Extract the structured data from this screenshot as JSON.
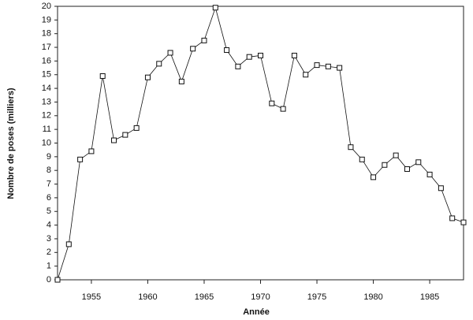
{
  "chart_data": {
    "type": "line",
    "x_label": "Année",
    "y_label": "Nombre de poses (milliers)",
    "x": [
      1952,
      1953,
      1954,
      1955,
      1956,
      1957,
      1958,
      1959,
      1960,
      1961,
      1962,
      1963,
      1964,
      1965,
      1966,
      1967,
      1968,
      1969,
      1970,
      1971,
      1972,
      1973,
      1974,
      1975,
      1976,
      1977,
      1978,
      1979,
      1980,
      1981,
      1982,
      1983,
      1984,
      1985,
      1986,
      1987,
      1988
    ],
    "values": [
      0,
      2.6,
      8.8,
      9.4,
      14.9,
      10.2,
      10.6,
      11.1,
      14.8,
      15.8,
      16.6,
      14.5,
      16.9,
      17.5,
      19.9,
      16.8,
      15.6,
      16.3,
      16.4,
      12.9,
      12.5,
      16.4,
      15.0,
      15.7,
      15.6,
      15.5,
      9.7,
      8.8,
      7.5,
      8.4,
      9.1,
      8.1,
      8.6,
      7.7,
      6.7,
      4.5,
      4.2
    ],
    "color": "#111111",
    "xlim": [
      1952,
      1988
    ],
    "xticks": [
      1955,
      1960,
      1965,
      1970,
      1975,
      1980,
      1985
    ],
    "ylim": [
      0,
      20
    ],
    "yticks": [
      0,
      1,
      2,
      3,
      4,
      5,
      6,
      7,
      8,
      9,
      10,
      11,
      12,
      13,
      14,
      15,
      16,
      17,
      18,
      19,
      20
    ]
  }
}
